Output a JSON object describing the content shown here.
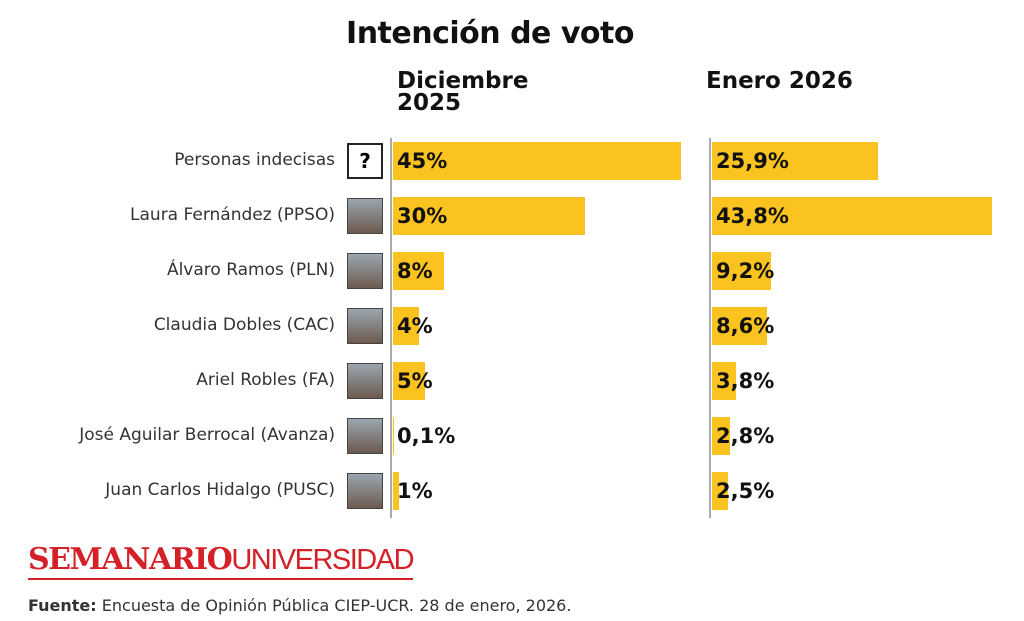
{
  "chart_data": {
    "type": "bar",
    "orientation": "horizontal",
    "title": "Intención de voto",
    "categories": [
      "Personas indecisas",
      "Laura Fernández (PPSO)",
      "Álvaro Ramos (PLN)",
      "Claudia Dobles (CAC)",
      "Ariel Robles (FA)",
      "José Aguilar Berrocal (Avanza)",
      "Juan Carlos Hidalgo (PUSC)"
    ],
    "undecided_icon": "?",
    "color": "#fbc31f",
    "series": [
      {
        "name": "Diciembre 2025",
        "values": [
          45,
          30,
          8,
          4,
          5,
          0.1,
          1
        ],
        "value_labels": [
          "45%",
          "30%",
          "8%",
          "4%",
          "5%",
          "0,1%",
          "1%"
        ]
      },
      {
        "name": "Enero 2026",
        "values": [
          25.9,
          43.8,
          9.2,
          8.6,
          3.8,
          2.8,
          2.5
        ],
        "value_labels": [
          "25,9%",
          "43,8%",
          "9,2%",
          "8,6%",
          "3,8%",
          "2,8%",
          "2,5%"
        ]
      }
    ]
  },
  "footer": {
    "brand_bold": "SEMANARIO",
    "brand_light": "UNIVERSIDAD",
    "source_label": "Fuente:",
    "source": "Encuesta de Opinión Pública CIEP-UCR. 28 de enero, 2026."
  }
}
